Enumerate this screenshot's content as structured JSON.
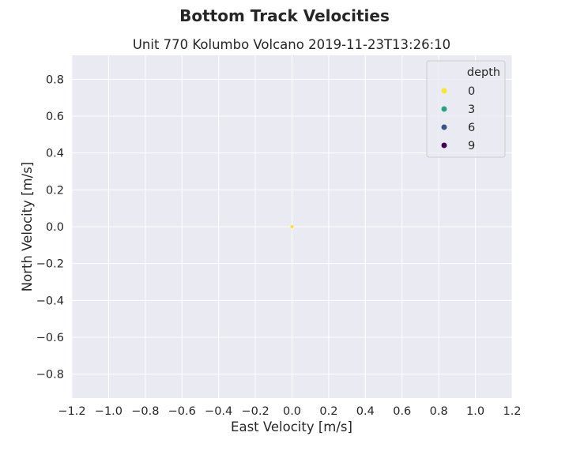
{
  "chart_data": {
    "type": "scatter",
    "suptitle": "Bottom Track Velocities",
    "title": "Unit 770 Kolumbo Volcano 2019-11-23T13:26:10",
    "xlabel": "East Velocity [m/s]",
    "ylabel": "North Velocity [m/s]",
    "xlim": [
      -1.2,
      1.2
    ],
    "ylim": [
      -0.93,
      0.93
    ],
    "xticks": [
      -1.2,
      -1.0,
      -0.8,
      -0.6,
      -0.4,
      -0.2,
      0.0,
      0.2,
      0.4,
      0.6,
      0.8,
      1.0,
      1.2
    ],
    "yticks": [
      -0.8,
      -0.6,
      -0.4,
      -0.2,
      0.0,
      0.2,
      0.4,
      0.6,
      0.8
    ],
    "xtick_labels": [
      "−1.2",
      "−1.0",
      "−0.8",
      "−0.6",
      "−0.4",
      "−0.2",
      "0.0",
      "0.2",
      "0.4",
      "0.6",
      "0.8",
      "1.0",
      "1.2"
    ],
    "ytick_labels": [
      "−0.8",
      "−0.6",
      "−0.4",
      "−0.2",
      "0.0",
      "0.2",
      "0.4",
      "0.6",
      "0.8"
    ],
    "grid": true,
    "background": "#eaeaf2",
    "points": [
      {
        "x": 0.0,
        "y": 0.0,
        "depth": 0,
        "color": "#fde725"
      }
    ],
    "legend": {
      "title": "depth",
      "placement": "top-right",
      "entries": [
        {
          "label": "0",
          "color": "#fde725"
        },
        {
          "label": "3",
          "color": "#21a685"
        },
        {
          "label": "6",
          "color": "#3b528b"
        },
        {
          "label": "9",
          "color": "#440154"
        }
      ]
    }
  }
}
